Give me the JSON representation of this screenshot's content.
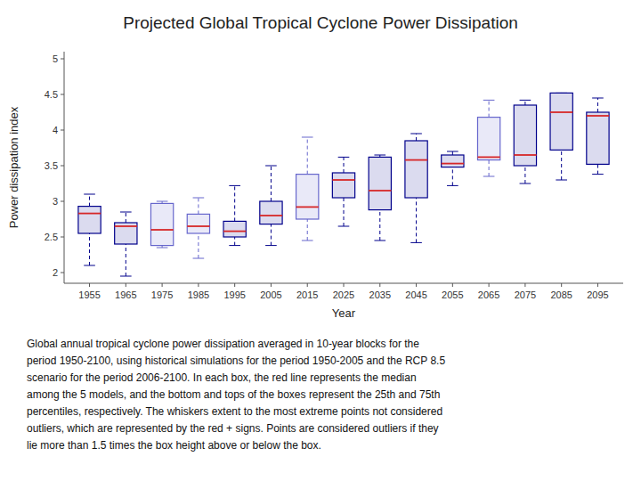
{
  "chart_data": {
    "type": "box",
    "title": "Projected Global Tropical Cyclone Power Dissipation",
    "x_label": "Year",
    "y_label": "Power dissipation index",
    "x": [
      1955,
      1965,
      1975,
      1985,
      1995,
      2005,
      2015,
      2025,
      2035,
      2045,
      2055,
      2065,
      2075,
      2085,
      2095
    ],
    "boxes": [
      {
        "whislo": 2.1,
        "q1": 2.55,
        "med": 2.83,
        "q3": 2.93,
        "whishi": 3.1
      },
      {
        "whislo": 1.95,
        "q1": 2.4,
        "med": 2.65,
        "q3": 2.7,
        "whishi": 2.85
      },
      {
        "whislo": 2.35,
        "q1": 2.38,
        "med": 2.6,
        "q3": 2.97,
        "whishi": 3.0
      },
      {
        "whislo": 2.2,
        "q1": 2.55,
        "med": 2.65,
        "q3": 2.82,
        "whishi": 3.05
      },
      {
        "whislo": 2.38,
        "q1": 2.5,
        "med": 2.58,
        "q3": 2.72,
        "whishi": 3.22
      },
      {
        "whislo": 2.38,
        "q1": 2.68,
        "med": 2.8,
        "q3": 3.0,
        "whishi": 3.5
      },
      {
        "whislo": 2.45,
        "q1": 2.75,
        "med": 2.92,
        "q3": 3.38,
        "whishi": 3.9
      },
      {
        "whislo": 2.65,
        "q1": 3.05,
        "med": 3.3,
        "q3": 3.4,
        "whishi": 3.62
      },
      {
        "whislo": 2.45,
        "q1": 2.88,
        "med": 3.15,
        "q3": 3.62,
        "whishi": 3.65
      },
      {
        "whislo": 2.42,
        "q1": 3.05,
        "med": 3.58,
        "q3": 3.85,
        "whishi": 3.95
      },
      {
        "whislo": 3.22,
        "q1": 3.48,
        "med": 3.53,
        "q3": 3.65,
        "whishi": 3.7
      },
      {
        "whislo": 3.35,
        "q1": 3.58,
        "med": 3.62,
        "q3": 4.18,
        "whishi": 4.42
      },
      {
        "whislo": 3.25,
        "q1": 3.5,
        "med": 3.65,
        "q3": 4.35,
        "whishi": 4.42
      },
      {
        "whislo": 3.3,
        "q1": 3.72,
        "med": 4.25,
        "q3": 4.52,
        "whishi": 4.52
      },
      {
        "whislo": 3.38,
        "q1": 3.52,
        "med": 4.2,
        "q3": 4.25,
        "whishi": 4.45
      }
    ],
    "colors": [
      "#00008B",
      "#00008B",
      "#6666CC",
      "#6666CC",
      "#00008B",
      "#00008B",
      "#6666CC",
      "#00008B",
      "#00008B",
      "#00008B",
      "#00008B",
      "#6666CC",
      "#00008B",
      "#00008B",
      "#00008B"
    ],
    "xlim": [
      1948,
      2102
    ],
    "xticks": [
      1955,
      1965,
      1975,
      1985,
      1995,
      2005,
      2015,
      2025,
      2035,
      2045,
      2055,
      2065,
      2075,
      2085,
      2095
    ],
    "ylim": [
      1.85,
      5.1
    ],
    "yticks": [
      2,
      2.5,
      3,
      3.5,
      4,
      4.5,
      5
    ],
    "annotations": [
      "Global annual tropical cyclone power dissipation averaged in 10-year blocks for the",
      "period 1950-2100, using historical simulations for the period 1950-2005 and the RCP 8.5",
      "scenario for the period 2006-2100. In each box, the red line represents the median",
      "among the 5 models, and the bottom and tops of the boxes represent the 25th and 75th",
      "percentiles, respectively. The whiskers extent to the most extreme points not considered",
      "outliers, which are represented by the red + signs. Points are considered outliers if they",
      "lie more than 1.5 times the box height above or below the box."
    ]
  }
}
